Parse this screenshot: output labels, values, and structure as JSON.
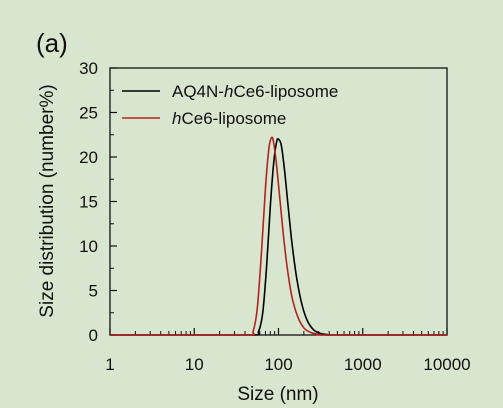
{
  "chart_data": {
    "type": "line",
    "panel_label": "(a)",
    "xlabel": "Size (nm)",
    "ylabel": "Size distribution (number%)",
    "xscale": "log",
    "xlim": [
      1,
      10000
    ],
    "ylim": [
      0,
      30
    ],
    "xticks": [
      1,
      10,
      100,
      1000,
      10000
    ],
    "xtick_labels": [
      "1",
      "10",
      "100",
      "1000",
      "10000"
    ],
    "yticks": [
      0,
      5,
      10,
      15,
      20,
      25,
      30
    ],
    "ytick_labels": [
      "0",
      "5",
      "10",
      "15",
      "20",
      "25",
      "30"
    ],
    "grid": false,
    "legend_position": "top-left",
    "series": [
      {
        "name": "AQ4N-hCe6-liposome",
        "name_prefix": "AQ4N-",
        "name_italic": "h",
        "name_suffix": "Ce6-liposome",
        "color": "#000000",
        "x": [
          1,
          10,
          50,
          58,
          65,
          72,
          80,
          88,
          95,
          100,
          108,
          118,
          130,
          145,
          165,
          190,
          220,
          260,
          310,
          380,
          500,
          10000
        ],
        "y": [
          0,
          0,
          0,
          0.4,
          2.5,
          7.5,
          14.5,
          19.5,
          21.7,
          22.0,
          21.3,
          18.5,
          14.5,
          10.2,
          6.3,
          3.4,
          1.6,
          0.6,
          0.2,
          0.05,
          0,
          0
        ]
      },
      {
        "name": "hCe6-liposome",
        "name_prefix": "",
        "name_italic": "h",
        "name_suffix": "Ce6-liposome",
        "color": "#b22222",
        "x": [
          1,
          10,
          45,
          50,
          56,
          63,
          70,
          77,
          83,
          88,
          95,
          105,
          115,
          128,
          145,
          170,
          200,
          240,
          300,
          400,
          10000
        ],
        "y": [
          0,
          0,
          0,
          0.4,
          3.0,
          9.5,
          16.5,
          21.0,
          22.2,
          21.5,
          19.0,
          14.8,
          11.0,
          7.3,
          4.2,
          2.0,
          0.8,
          0.3,
          0.08,
          0,
          0
        ]
      }
    ]
  }
}
